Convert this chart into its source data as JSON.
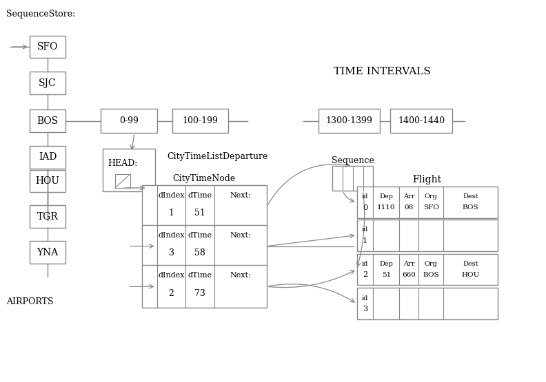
{
  "title": "SequenceStore:",
  "bg_color": "#ffffff",
  "airports_left": [
    "SFO",
    "SJC",
    "BOS",
    "IAD"
  ],
  "airports_right": [
    "HOU",
    "TGR",
    "YNA"
  ],
  "time_intervals_left": [
    "0-99",
    "100-199"
  ],
  "time_intervals_right": [
    "1300-1399",
    "1400-1440"
  ],
  "time_intervals_label": "TIME INTERVALS",
  "airports_label": "AIRPORTS",
  "city_node_label": "CityTimeNode",
  "head_label": "CityTimeListDeparture",
  "sequence_label": "Sequence",
  "flight_label": "Flight",
  "city_nodes": [
    {
      "dIndex": "1",
      "dTime": "51"
    },
    {
      "dIndex": "3",
      "dTime": "58"
    },
    {
      "dIndex": "2",
      "dTime": "73"
    }
  ],
  "flights": [
    {
      "id": "0",
      "dep": "1110",
      "arr": "08",
      "org": "SFO",
      "dest": "BOS"
    },
    {
      "id": "1",
      "dep": "",
      "arr": "",
      "org": "",
      "dest": ""
    },
    {
      "id": "2",
      "dep": "51",
      "arr": "660",
      "org": "BOS",
      "dest": "HOU"
    },
    {
      "id": "3",
      "dep": "",
      "arr": "",
      "org": "",
      "dest": ""
    }
  ],
  "ec": "#888888",
  "lc": "#888888"
}
